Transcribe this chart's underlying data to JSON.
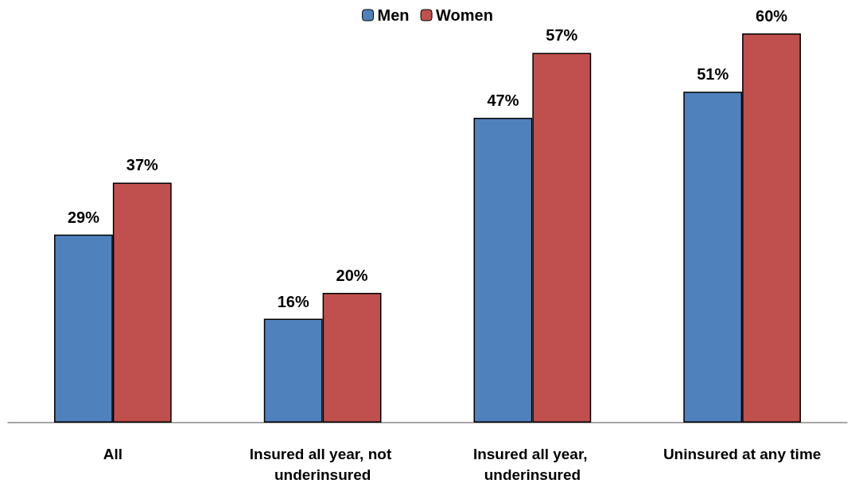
{
  "chart_data": {
    "type": "bar",
    "categories": [
      "All",
      "Insured all year, not underinsured",
      "Insured all year, underinsured",
      "Uninsured at any time"
    ],
    "series": [
      {
        "name": "Men",
        "color": "#4f81bd",
        "values": [
          29,
          16,
          47,
          51
        ],
        "value_labels": [
          "29%",
          "16%",
          "47%",
          "51%"
        ]
      },
      {
        "name": "Women",
        "color": "#c0504d",
        "values": [
          37,
          20,
          57,
          60
        ],
        "value_labels": [
          "37%",
          "20%",
          "57%",
          "60%"
        ]
      }
    ],
    "legend": "top"
  }
}
